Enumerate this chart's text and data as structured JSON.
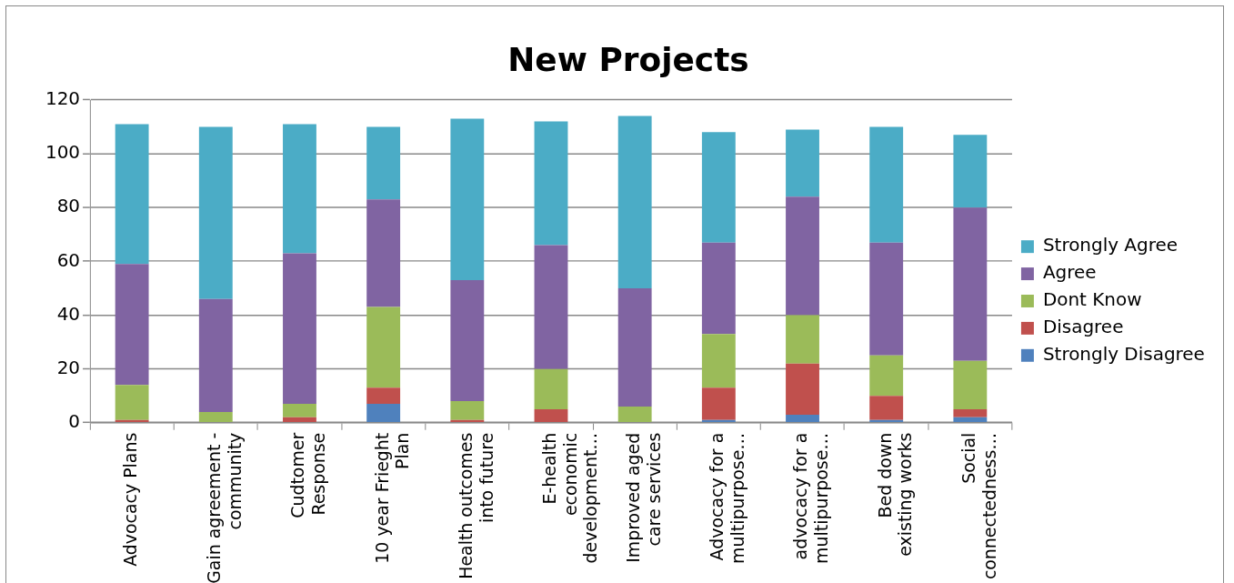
{
  "chart_data": {
    "type": "bar",
    "title": "New Projects",
    "stacked": true,
    "legend": "right",
    "grid": "y",
    "categories": [
      "Advocacy Plans",
      "Gain agreement - community",
      "Cudtomer Response",
      "10 year Frieght Plan",
      "Health outcomes into future",
      "E-health economic development…",
      "Improved aged care services",
      "Advocacy for a multipurpose…",
      "advocacy for a multipurpose…",
      "Bed down existing works",
      "Social connectedness…"
    ],
    "ylim": [
      0,
      120
    ],
    "yticks": [
      0,
      20,
      40,
      60,
      80,
      100,
      120
    ],
    "series": [
      {
        "name": "Strongly Disagree",
        "color": "#4f81bd",
        "values": [
          0,
          0,
          0,
          7,
          0,
          0,
          0,
          1,
          3,
          1,
          2
        ]
      },
      {
        "name": "Disagree",
        "color": "#c0504d",
        "values": [
          1,
          0,
          2,
          6,
          1,
          5,
          0,
          12,
          19,
          9,
          3
        ]
      },
      {
        "name": "Dont Know",
        "color": "#9bbb59",
        "values": [
          13,
          4,
          5,
          30,
          7,
          15,
          6,
          20,
          18,
          15,
          18
        ]
      },
      {
        "name": "Agree",
        "color": "#8064a2",
        "values": [
          45,
          42,
          56,
          40,
          45,
          46,
          44,
          34,
          44,
          42,
          57
        ]
      },
      {
        "name": "Strongly Agree",
        "color": "#4bacc6",
        "values": [
          52,
          64,
          48,
          27,
          60,
          46,
          64,
          41,
          25,
          43,
          27
        ]
      }
    ]
  }
}
